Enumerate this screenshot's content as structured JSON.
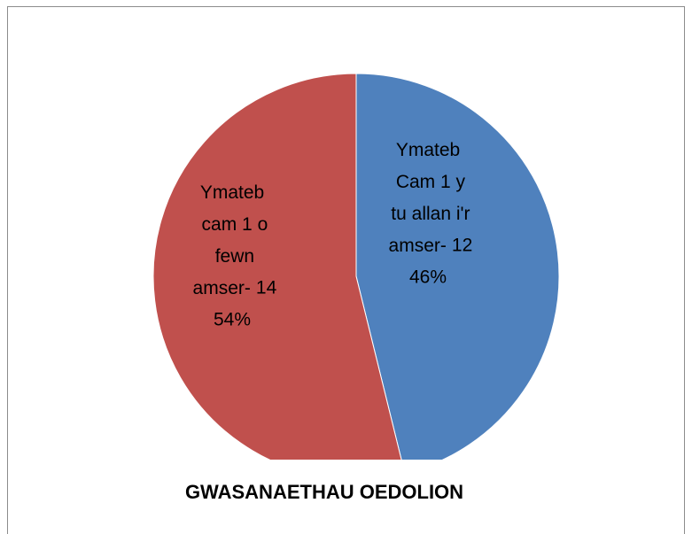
{
  "chart_data": {
    "type": "pie",
    "title": "GWASANAETHAU OEDOLION",
    "categories": [
      "Ymateb Cam 1 y tu allan i'r amser-",
      "Ymateb cam 1 o fewn amser-"
    ],
    "values": [
      12,
      14
    ],
    "percent_labels": [
      "46%",
      "54%"
    ],
    "colors": [
      "#4f81bd",
      "#c0504d"
    ]
  }
}
